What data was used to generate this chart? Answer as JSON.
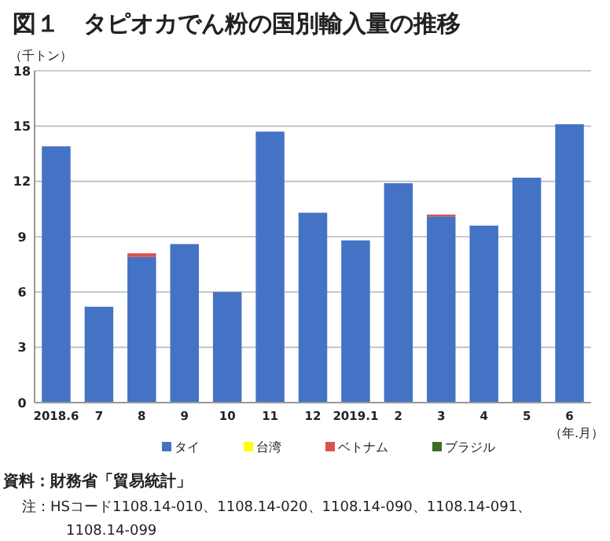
{
  "chart_data": {
    "type": "bar",
    "title": "図１　タピオカでん粉の国別輸入量の推移",
    "ylabel": "（千トン）",
    "xlabel": "（年.月）",
    "categories": [
      "2018.6",
      "7",
      "8",
      "9",
      "10",
      "11",
      "12",
      "2019.1",
      "2",
      "3",
      "4",
      "5",
      "6"
    ],
    "stacked": true,
    "series": [
      {
        "name": "タイ",
        "color": "#4472c4",
        "values": [
          13.9,
          5.2,
          7.9,
          8.6,
          6.0,
          14.7,
          10.3,
          8.8,
          11.9,
          10.1,
          9.6,
          12.2,
          15.1
        ]
      },
      {
        "name": "台湾",
        "color": "#ffff00",
        "values": [
          0,
          0,
          0,
          0,
          0,
          0,
          0,
          0,
          0,
          0,
          0,
          0,
          0
        ]
      },
      {
        "name": "ベトナム",
        "color": "#d9534f",
        "values": [
          0,
          0,
          0.2,
          0,
          0,
          0,
          0,
          0,
          0,
          0.1,
          0,
          0,
          0
        ]
      },
      {
        "name": "ブラジル",
        "color": "#3a6e2a",
        "values": [
          0,
          0,
          0,
          0,
          0,
          0,
          0,
          0,
          0,
          0,
          0,
          0,
          0
        ]
      }
    ],
    "ylim": [
      0,
      18
    ],
    "yticks": [
      0,
      3,
      6,
      9,
      12,
      15,
      18
    ],
    "grid": "y",
    "legend": "bottom",
    "annotations": [
      "資料：財務省「貿易統計」",
      "注：HSコード1108.14-010、1108.14-020、1108.14-090、1108.14-091、1108.14-099"
    ]
  }
}
